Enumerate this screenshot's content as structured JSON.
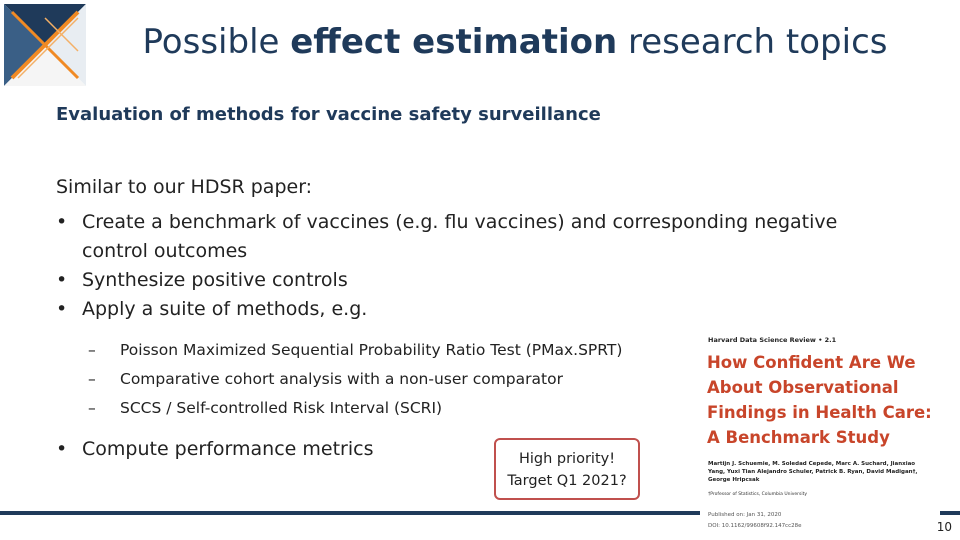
{
  "title": {
    "pre": "Possible ",
    "bold": "effect estimation",
    "post": " research topics"
  },
  "subheading": "Evaluation of methods for vaccine safety surveillance",
  "intro": "Similar to our HDSR paper:",
  "bullets": [
    "Create a benchmark of vaccines (e.g. flu vaccines) and corresponding negative control outcomes",
    "Synthesize positive controls",
    "Apply a suite of methods, e.g.",
    "Compute performance metrics"
  ],
  "sub_bullets": [
    "Poisson Maximized Sequential Probability Ratio Test (PMax.SPRT)",
    "Comparative cohort analysis with a non-user comparator",
    "SCCS / Self-controlled Risk Interval (SCRI)"
  ],
  "bullet_glyph": "•",
  "dash_glyph": "–",
  "callout": {
    "line1": "High priority!",
    "line2": "Target Q1 2021?"
  },
  "paper": {
    "journal": "Harvard Data Science Review • 2.1",
    "title": "How Confident Are We About Observational Findings in Health Care: A Benchmark Study",
    "authors": "Martijn J. Schuemie, M. Soledad Cepede, Marc A. Suchard, Jianxiao Yang, Yuxi Tian Alejandro Schuler, Patrick B. Ryan, David Madigan†, George Hripcsak",
    "affiliation": "†Professor of Statistics, Columbia University",
    "published": "Published on: Jan 31, 2020",
    "doi": "DOI: 10.1162/99608f92.147cc28e"
  },
  "page_number": "10",
  "colors": {
    "title": "#1f3a5a",
    "accent": "#c8452a",
    "callout_border": "#c0504d",
    "footer": "#1f3a5a"
  },
  "logo_icon": "ohdsi-logo-icon"
}
